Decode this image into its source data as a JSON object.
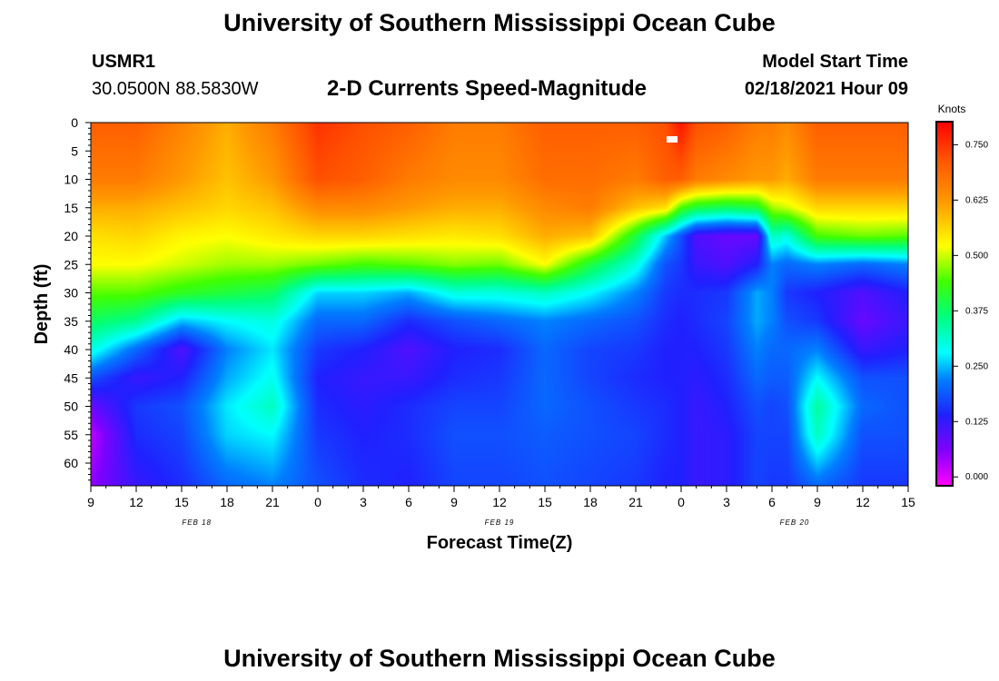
{
  "header": {
    "title_top": "University of Southern Mississippi Ocean Cube",
    "title_bottom": "University of Southern Mississippi Ocean Cube",
    "station_id": "USMR1",
    "station_coords": "30.0500N 88.5830W",
    "model_start_label": "Model Start Time",
    "model_start_value": "02/18/2021 Hour 09"
  },
  "chart_data": {
    "type": "heatmap",
    "title": "2-D Currents Speed-Magnitude",
    "xlabel": "Forecast Time(Z)",
    "ylabel": "Depth (ft)",
    "x_tick_labels": [
      "9",
      "12",
      "15",
      "18",
      "21",
      "0",
      "3",
      "6",
      "9",
      "12",
      "15",
      "18",
      "21",
      "0",
      "3",
      "6",
      "9",
      "12",
      "15"
    ],
    "x_hours_from_start": [
      0,
      3,
      6,
      9,
      12,
      15,
      18,
      21,
      24,
      27,
      30,
      33,
      36,
      39,
      42,
      45,
      48,
      51,
      54
    ],
    "x_range_hours": [
      0,
      54
    ],
    "date_labels": [
      {
        "text": "FEB 18",
        "hour": 7
      },
      {
        "text": "FEB 19",
        "hour": 27
      },
      {
        "text": "FEB 20",
        "hour": 46.5
      }
    ],
    "y_tick_labels": [
      "0",
      "5",
      "10",
      "15",
      "20",
      "25",
      "30",
      "35",
      "40",
      "45",
      "50",
      "55",
      "60"
    ],
    "y_range_ft": [
      0,
      64
    ],
    "y_inverted": true,
    "colorbar": {
      "label": "Knots",
      "range": [
        -0.02,
        0.8
      ],
      "ticks": [
        "0.750",
        "0.625",
        "0.500",
        "0.375",
        "0.250",
        "0.125",
        "0.000"
      ],
      "tick_values": [
        0.75,
        0.625,
        0.5,
        0.375,
        0.25,
        0.125,
        0.0
      ],
      "stops": [
        {
          "v": -0.02,
          "color": "#ff00ff"
        },
        {
          "v": 0.06,
          "color": "#8000ff"
        },
        {
          "v": 0.14,
          "color": "#2020ff"
        },
        {
          "v": 0.22,
          "color": "#0080ff"
        },
        {
          "v": 0.28,
          "color": "#00ffff"
        },
        {
          "v": 0.36,
          "color": "#00ff80"
        },
        {
          "v": 0.44,
          "color": "#40ff00"
        },
        {
          "v": 0.52,
          "color": "#ffff00"
        },
        {
          "v": 0.62,
          "color": "#ff9900"
        },
        {
          "v": 0.72,
          "color": "#ff5000"
        },
        {
          "v": 0.8,
          "color": "#ff0000"
        }
      ]
    },
    "field": {
      "times": [
        0,
        3,
        6,
        9,
        12,
        15,
        18,
        21,
        24,
        27,
        30,
        33,
        36,
        38,
        39,
        40,
        42,
        44,
        45,
        46,
        48,
        51,
        54
      ],
      "depths": [
        0,
        10,
        15,
        20,
        25,
        30,
        35,
        40,
        45,
        50,
        55,
        64
      ],
      "values": [
        [
          0.7,
          0.66,
          0.6,
          0.55,
          0.52,
          0.45,
          0.38,
          0.3,
          0.18,
          0.08,
          0.02,
          0.05
        ],
        [
          0.7,
          0.66,
          0.6,
          0.56,
          0.52,
          0.45,
          0.35,
          0.2,
          0.12,
          0.16,
          0.15,
          0.12
        ],
        [
          0.65,
          0.62,
          0.58,
          0.53,
          0.5,
          0.42,
          0.25,
          0.1,
          0.14,
          0.18,
          0.17,
          0.15
        ],
        [
          0.6,
          0.58,
          0.56,
          0.52,
          0.48,
          0.4,
          0.28,
          0.22,
          0.24,
          0.27,
          0.26,
          0.2
        ],
        [
          0.66,
          0.62,
          0.58,
          0.54,
          0.48,
          0.38,
          0.3,
          0.27,
          0.29,
          0.32,
          0.28,
          0.22
        ],
        [
          0.75,
          0.72,
          0.64,
          0.56,
          0.46,
          0.26,
          0.2,
          0.16,
          0.14,
          0.15,
          0.16,
          0.18
        ],
        [
          0.72,
          0.7,
          0.64,
          0.56,
          0.44,
          0.26,
          0.2,
          0.14,
          0.12,
          0.13,
          0.14,
          0.15
        ],
        [
          0.7,
          0.66,
          0.62,
          0.55,
          0.45,
          0.24,
          0.15,
          0.1,
          0.12,
          0.15,
          0.15,
          0.14
        ],
        [
          0.66,
          0.64,
          0.6,
          0.54,
          0.47,
          0.3,
          0.18,
          0.14,
          0.15,
          0.17,
          0.18,
          0.17
        ],
        [
          0.66,
          0.64,
          0.6,
          0.55,
          0.46,
          0.3,
          0.2,
          0.15,
          0.16,
          0.17,
          0.18,
          0.17
        ],
        [
          0.7,
          0.68,
          0.64,
          0.6,
          0.52,
          0.32,
          0.22,
          0.2,
          0.2,
          0.2,
          0.19,
          0.18
        ],
        [
          0.7,
          0.68,
          0.66,
          0.58,
          0.4,
          0.28,
          0.2,
          0.17,
          0.17,
          0.18,
          0.18,
          0.17
        ],
        [
          0.7,
          0.66,
          0.58,
          0.4,
          0.3,
          0.22,
          0.18,
          0.16,
          0.15,
          0.16,
          0.17,
          0.16
        ],
        [
          0.72,
          0.7,
          0.55,
          0.25,
          0.18,
          0.16,
          0.15,
          0.14,
          0.14,
          0.15,
          0.15,
          0.14
        ],
        [
          0.78,
          0.7,
          0.44,
          0.18,
          0.16,
          0.15,
          0.14,
          0.14,
          0.14,
          0.14,
          0.14,
          0.14
        ],
        [
          0.72,
          0.66,
          0.4,
          0.1,
          0.12,
          0.15,
          0.15,
          0.14,
          0.13,
          0.12,
          0.12,
          0.12
        ],
        [
          0.7,
          0.64,
          0.38,
          0.08,
          0.1,
          0.16,
          0.17,
          0.16,
          0.15,
          0.14,
          0.13,
          0.13
        ],
        [
          0.66,
          0.62,
          0.4,
          0.08,
          0.14,
          0.24,
          0.24,
          0.22,
          0.2,
          0.18,
          0.17,
          0.17
        ],
        [
          0.66,
          0.62,
          0.48,
          0.32,
          0.22,
          0.22,
          0.22,
          0.2,
          0.19,
          0.17,
          0.17,
          0.16
        ],
        [
          0.64,
          0.6,
          0.5,
          0.3,
          0.2,
          0.16,
          0.18,
          0.2,
          0.19,
          0.18,
          0.17,
          0.16
        ],
        [
          0.7,
          0.66,
          0.56,
          0.44,
          0.22,
          0.14,
          0.16,
          0.22,
          0.28,
          0.34,
          0.32,
          0.2
        ],
        [
          0.7,
          0.66,
          0.56,
          0.46,
          0.2,
          0.1,
          0.08,
          0.12,
          0.18,
          0.2,
          0.18,
          0.16
        ],
        [
          0.7,
          0.66,
          0.56,
          0.45,
          0.22,
          0.14,
          0.12,
          0.14,
          0.18,
          0.18,
          0.18,
          0.16
        ]
      ]
    }
  }
}
